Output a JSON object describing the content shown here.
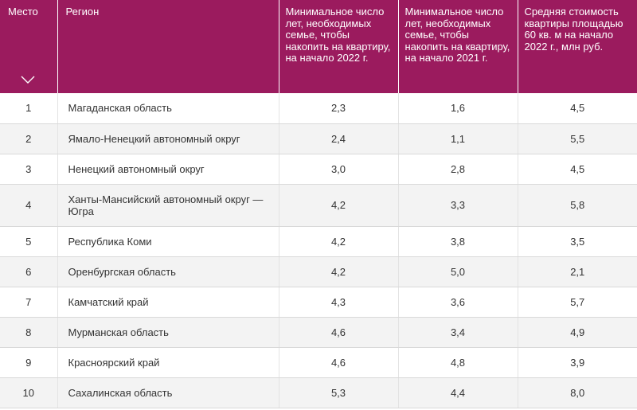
{
  "header": {
    "rank": "Место",
    "region": "Регион",
    "years_2022": "Минимальное число лет, необходимых семье, чтобы накопить на квартиру, на начало 2022 г.",
    "years_2021": "Минимальное число лет, необходимых семье, чтобы накопить на квартиру, на начало 2021 г.",
    "avg_price": "Средняя стоимость квартиры площадью 60 кв. м на начало 2022 г., млн руб."
  },
  "rows": [
    {
      "rank": "1",
      "region": "Магаданская область",
      "years_2022": "2,3",
      "years_2021": "1,6",
      "avg_price": "4,5"
    },
    {
      "rank": "2",
      "region": "Ямало-Ненецкий автономный округ",
      "years_2022": "2,4",
      "years_2021": "1,1",
      "avg_price": "5,5"
    },
    {
      "rank": "3",
      "region": "Ненецкий автономный округ",
      "years_2022": "3,0",
      "years_2021": "2,8",
      "avg_price": "4,5"
    },
    {
      "rank": "4",
      "region": "Ханты-Мансийский автономный округ — Югра",
      "years_2022": "4,2",
      "years_2021": "3,3",
      "avg_price": "5,8"
    },
    {
      "rank": "5",
      "region": "Республика Коми",
      "years_2022": "4,2",
      "years_2021": "3,8",
      "avg_price": "3,5"
    },
    {
      "rank": "6",
      "region": "Оренбургская область",
      "years_2022": "4,2",
      "years_2021": "5,0",
      "avg_price": "2,1"
    },
    {
      "rank": "7",
      "region": "Камчатский край",
      "years_2022": "4,3",
      "years_2021": "3,6",
      "avg_price": "5,7"
    },
    {
      "rank": "8",
      "region": "Мурманская область",
      "years_2022": "4,6",
      "years_2021": "3,4",
      "avg_price": "4,9"
    },
    {
      "rank": "9",
      "region": "Красноярский край",
      "years_2022": "4,6",
      "years_2021": "4,8",
      "avg_price": "3,9"
    },
    {
      "rank": "10",
      "region": "Сахалинская область",
      "years_2022": "5,3",
      "years_2021": "4,4",
      "avg_price": "8,0"
    }
  ],
  "icons": {
    "sort": "chevron-down-icon"
  },
  "colors": {
    "header_bg": "#9b1b5e",
    "row_alt": "#f3f3f3",
    "text": "#333333"
  }
}
